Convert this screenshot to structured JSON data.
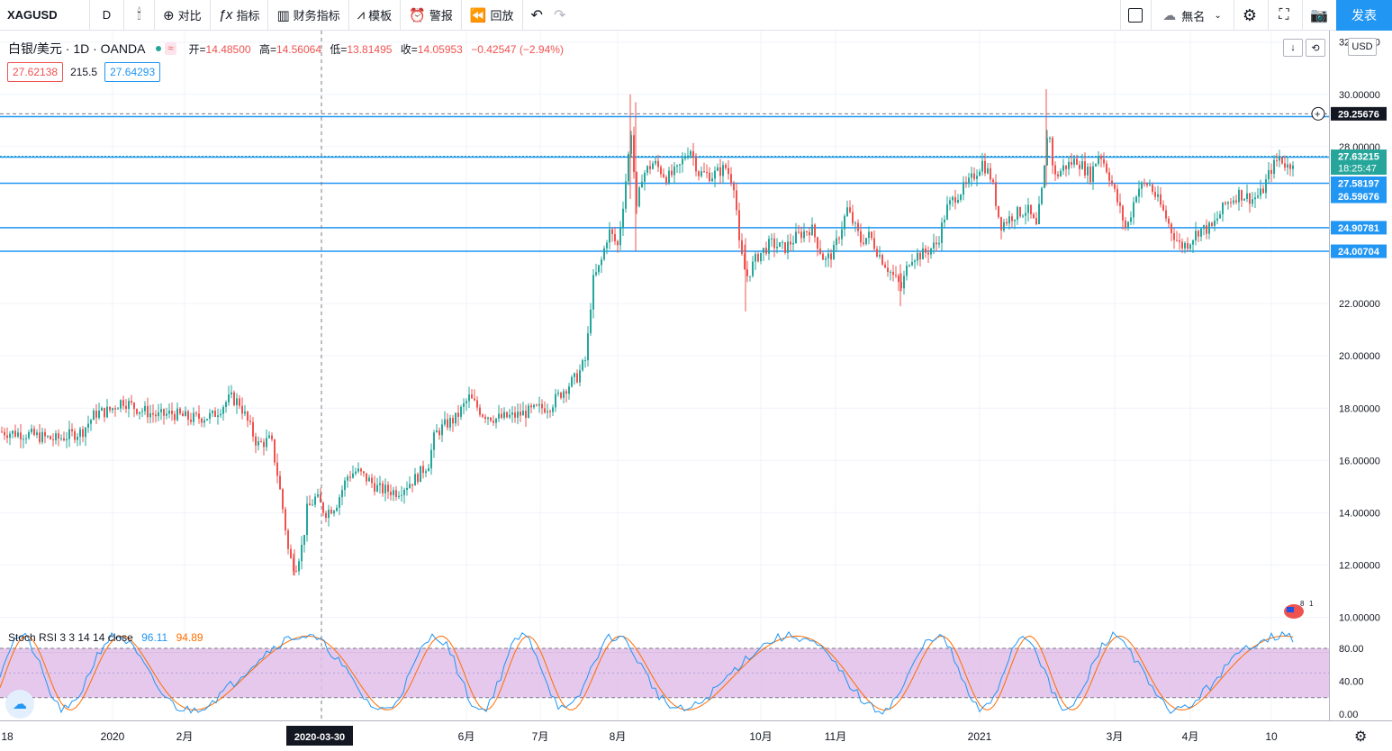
{
  "toolbar": {
    "symbol": "XAGUSD",
    "interval": "D",
    "compare": "对比",
    "indicators": "指标",
    "financials": "财务指标",
    "templates": "模板",
    "alert": "警报",
    "replay": "回放",
    "layout_name": "無名",
    "publish": "发表"
  },
  "legend": {
    "title": "白银/美元 · 1D · OANDA",
    "badge": "≈",
    "open_label": "开=",
    "open": "14.48500",
    "high_label": "高=",
    "high": "14.56064",
    "low_label": "低=",
    "low": "13.81495",
    "close_label": "收=",
    "close": "14.05953",
    "change": "−0.42547 (−2.94%)",
    "bid": "27.62138",
    "spread": "215.5",
    "ask": "27.64293",
    "currency": "USD"
  },
  "price_axis": {
    "ticks": [
      "32.00000",
      "30.00000",
      "28.00000",
      "22.00000",
      "20.00000",
      "18.00000",
      "16.00000",
      "14.00000",
      "12.00000",
      "10.00000"
    ],
    "ticks_values": [
      32,
      30,
      28,
      22,
      20,
      18,
      16,
      14,
      12,
      10
    ],
    "labels": [
      {
        "text": "29.25676",
        "value": 29.25676,
        "color": "#131722"
      },
      {
        "text": "27.63215",
        "value": 27.63215,
        "color": "#26a69a",
        "countdown": "18:25:47"
      },
      {
        "text": "27.58197",
        "value": 26.6,
        "color": "#2196f3",
        "screen_value": 27.58197
      },
      {
        "text": "26.59676",
        "value": 26.1,
        "color": "#2196f3",
        "screen_value": 26.59676
      },
      {
        "text": "24.90781",
        "value": 24.9,
        "color": "#2196f3"
      },
      {
        "text": "24.00704",
        "value": 24.0,
        "color": "#2196f3"
      }
    ]
  },
  "time_axis": {
    "labels": [
      "18",
      "2020",
      "2月",
      "2020-03-30",
      "6月",
      "7月",
      "8月",
      "10月",
      "11月",
      "2021",
      "3月",
      "4月",
      "10"
    ]
  },
  "indicator": {
    "name": "Stoch RSI 3 3 14 14 close",
    "k": "96.11",
    "d": "94.89",
    "ticks": [
      "80.00",
      "40.00",
      "0.00"
    ],
    "k_color": "#2196f3",
    "d_color": "#ff6d00",
    "band_color": "#e1bee7"
  },
  "flag_counts": [
    "8",
    "1"
  ],
  "chart_data": {
    "type": "candlestick",
    "title": "白银/美元 · 1D · OANDA",
    "ylim": [
      10,
      32
    ],
    "horizontal_levels": [
      29.25676,
      27.63215,
      26.6,
      24.9,
      24.0
    ],
    "crosshair_date": "2020-03-30",
    "anchors": [
      [
        0,
        17.1
      ],
      [
        30,
        17.0
      ],
      [
        60,
        16.8
      ],
      [
        90,
        17.1
      ],
      [
        105,
        17.8
      ],
      [
        120,
        17.9
      ],
      [
        135,
        18.3
      ],
      [
        150,
        18.0
      ],
      [
        175,
        17.7
      ],
      [
        190,
        17.8
      ],
      [
        210,
        17.6
      ],
      [
        235,
        17.7
      ],
      [
        255,
        18.4
      ],
      [
        265,
        18.2
      ],
      [
        275,
        17.4
      ],
      [
        285,
        16.6
      ],
      [
        300,
        16.8
      ],
      [
        308,
        15.3
      ],
      [
        315,
        13.7
      ],
      [
        320,
        12.3
      ],
      [
        327,
        11.9
      ],
      [
        335,
        12.8
      ],
      [
        340,
        14.1
      ],
      [
        350,
        14.6
      ],
      [
        360,
        14.0
      ],
      [
        372,
        14.3
      ],
      [
        385,
        15.4
      ],
      [
        395,
        15.6
      ],
      [
        410,
        15.2
      ],
      [
        420,
        14.9
      ],
      [
        440,
        14.8
      ],
      [
        460,
        15.3
      ],
      [
        475,
        15.9
      ],
      [
        482,
        17.0
      ],
      [
        495,
        17.4
      ],
      [
        505,
        17.6
      ],
      [
        520,
        18.4
      ],
      [
        535,
        17.8
      ],
      [
        550,
        17.6
      ],
      [
        570,
        17.7
      ],
      [
        590,
        17.9
      ],
      [
        610,
        18.1
      ],
      [
        625,
        18.7
      ],
      [
        640,
        19.2
      ],
      [
        650,
        19.9
      ],
      [
        657,
        22.8
      ],
      [
        666,
        23.5
      ],
      [
        675,
        24.8
      ],
      [
        685,
        24.2
      ],
      [
        692,
        26.1
      ],
      [
        700,
        28.6
      ],
      [
        706,
        25.5
      ],
      [
        712,
        26.9
      ],
      [
        725,
        27.4
      ],
      [
        740,
        26.8
      ],
      [
        752,
        27.1
      ],
      [
        765,
        28.0
      ],
      [
        775,
        27.0
      ],
      [
        790,
        26.9
      ],
      [
        805,
        27.2
      ],
      [
        815,
        26.5
      ],
      [
        820,
        24.2
      ],
      [
        828,
        23.0
      ],
      [
        840,
        23.8
      ],
      [
        855,
        24.3
      ],
      [
        870,
        24.1
      ],
      [
        885,
        24.6
      ],
      [
        900,
        24.9
      ],
      [
        915,
        23.6
      ],
      [
        925,
        24.0
      ],
      [
        940,
        25.6
      ],
      [
        955,
        24.4
      ],
      [
        965,
        24.6
      ],
      [
        975,
        23.9
      ],
      [
        990,
        23.1
      ],
      [
        1000,
        22.6
      ],
      [
        1010,
        23.8
      ],
      [
        1025,
        23.9
      ],
      [
        1040,
        24.3
      ],
      [
        1050,
        25.6
      ],
      [
        1060,
        26.1
      ],
      [
        1075,
        26.6
      ],
      [
        1090,
        27.4
      ],
      [
        1100,
        26.8
      ],
      [
        1110,
        25.0
      ],
      [
        1125,
        25.4
      ],
      [
        1140,
        25.6
      ],
      [
        1150,
        24.9
      ],
      [
        1158,
        26.7
      ],
      [
        1163,
        28.9
      ],
      [
        1170,
        26.8
      ],
      [
        1180,
        27.2
      ],
      [
        1195,
        27.5
      ],
      [
        1210,
        26.9
      ],
      [
        1220,
        27.8
      ],
      [
        1230,
        27.0
      ],
      [
        1240,
        25.9
      ],
      [
        1250,
        24.8
      ],
      [
        1262,
        26.4
      ],
      [
        1275,
        26.6
      ],
      [
        1290,
        25.6
      ],
      [
        1300,
        24.8
      ],
      [
        1310,
        24.2
      ],
      [
        1318,
        24.3
      ],
      [
        1330,
        24.8
      ],
      [
        1345,
        24.9
      ],
      [
        1360,
        25.8
      ],
      [
        1375,
        26.2
      ],
      [
        1390,
        26.0
      ],
      [
        1400,
        26.2
      ],
      [
        1410,
        27.1
      ],
      [
        1420,
        27.6
      ],
      [
        1430,
        27.2
      ],
      [
        1437,
        27.63
      ]
    ]
  }
}
